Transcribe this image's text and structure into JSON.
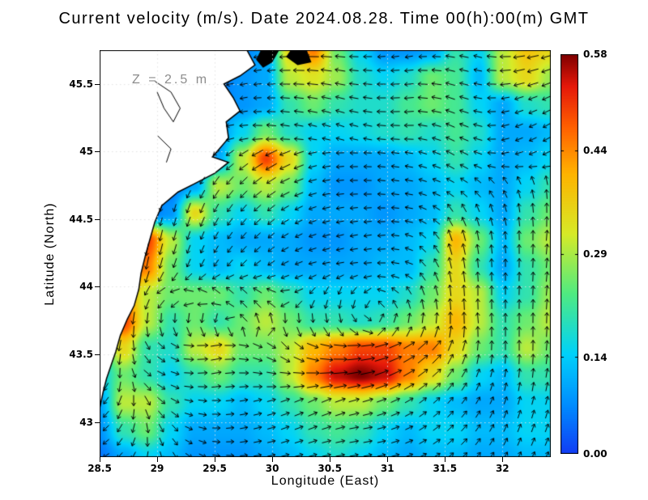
{
  "title": "Current velocity (m/s). Date 2024.08.28. Time 00(h):00(m) GMT",
  "annotation": "Z = 2.5 m",
  "axes": {
    "x": {
      "label": "Longitude (East)",
      "ticks": [
        {
          "value": 28.5,
          "label": "28.5"
        },
        {
          "value": 29.0,
          "label": "29"
        },
        {
          "value": 29.5,
          "label": "29.5"
        },
        {
          "value": 30.0,
          "label": "30"
        },
        {
          "value": 30.5,
          "label": "30.5"
        },
        {
          "value": 31.0,
          "label": "31"
        },
        {
          "value": 31.5,
          "label": "31.5"
        },
        {
          "value": 32.0,
          "label": "32"
        }
      ]
    },
    "y": {
      "label": "Latitude (North)",
      "ticks": [
        {
          "value": 45.5,
          "label": "45.5"
        },
        {
          "value": 45.0,
          "label": "45"
        },
        {
          "value": 44.5,
          "label": "44.5"
        },
        {
          "value": 44.0,
          "label": "44"
        },
        {
          "value": 43.5,
          "label": "43.5"
        },
        {
          "value": 43.0,
          "label": "43"
        }
      ]
    }
  },
  "colorbar": {
    "min": 0.0,
    "max": 0.58,
    "ticks": [
      {
        "value": 0.58,
        "label": "0.58"
      },
      {
        "value": 0.44,
        "label": "0.44"
      },
      {
        "value": 0.29,
        "label": "0.29"
      },
      {
        "value": 0.14,
        "label": "0.14"
      },
      {
        "value": 0.0,
        "label": "0.00"
      }
    ]
  },
  "colors": {
    "land_fill": "#ffffff",
    "coast_stroke": "#000000",
    "arrow": "#000000",
    "gridline": "rgba(225,225,225,0.9)",
    "annotation": "#8c8c8c"
  },
  "chart_data": {
    "type": "heatmap",
    "subtype": "vector-field",
    "title": "Current velocity (m/s). Date 2024.08.28. Time 00(h):00(m) GMT",
    "units": "m/s",
    "depth_label": "Z = 2.5 m",
    "lon_range": [
      28.5,
      32.42
    ],
    "lat_range": [
      42.74,
      45.75
    ],
    "speed_range": [
      0.0,
      0.58
    ],
    "grid_lon": [
      28.5,
      28.71,
      28.91,
      29.12,
      29.33,
      29.53,
      29.74,
      29.94,
      30.15,
      30.36,
      30.56,
      30.77,
      30.97,
      31.18,
      31.39,
      31.59,
      31.8,
      32.0,
      32.21,
      32.42
    ],
    "grid_lat": [
      45.75,
      45.55,
      45.35,
      45.15,
      44.95,
      44.75,
      44.55,
      44.34,
      44.14,
      43.94,
      43.74,
      43.54,
      43.34,
      43.14,
      42.94,
      42.74
    ],
    "speed": [
      [
        0.05,
        0.05,
        0.05,
        0.05,
        0.05,
        0.05,
        0.06,
        0.1,
        0.35,
        0.45,
        0.25,
        0.15,
        0.08,
        0.08,
        0.1,
        0.2,
        0.15,
        0.3,
        0.38,
        0.35
      ],
      [
        0.05,
        0.05,
        0.05,
        0.05,
        0.05,
        0.05,
        0.08,
        0.1,
        0.3,
        0.33,
        0.28,
        0.18,
        0.15,
        0.18,
        0.25,
        0.22,
        0.12,
        0.3,
        0.35,
        0.28
      ],
      [
        0.05,
        0.05,
        0.05,
        0.05,
        0.05,
        0.06,
        0.08,
        0.1,
        0.2,
        0.25,
        0.2,
        0.18,
        0.18,
        0.22,
        0.25,
        0.22,
        0.15,
        0.1,
        0.18,
        0.2
      ],
      [
        0.05,
        0.05,
        0.05,
        0.05,
        0.05,
        0.08,
        0.15,
        0.25,
        0.18,
        0.15,
        0.15,
        0.16,
        0.18,
        0.2,
        0.18,
        0.22,
        0.18,
        0.1,
        0.1,
        0.12
      ],
      [
        0.05,
        0.05,
        0.05,
        0.05,
        0.06,
        0.1,
        0.3,
        0.5,
        0.35,
        0.15,
        0.1,
        0.1,
        0.1,
        0.12,
        0.15,
        0.2,
        0.15,
        0.1,
        0.12,
        0.15
      ],
      [
        0.05,
        0.05,
        0.05,
        0.05,
        0.1,
        0.3,
        0.25,
        0.3,
        0.25,
        0.12,
        0.08,
        0.08,
        0.1,
        0.1,
        0.12,
        0.15,
        0.12,
        0.1,
        0.15,
        0.2
      ],
      [
        0.05,
        0.05,
        0.05,
        0.08,
        0.35,
        0.2,
        0.15,
        0.2,
        0.15,
        0.1,
        0.1,
        0.1,
        0.08,
        0.1,
        0.12,
        0.2,
        0.15,
        0.1,
        0.2,
        0.25
      ],
      [
        0.05,
        0.05,
        0.5,
        0.3,
        0.15,
        0.12,
        0.1,
        0.1,
        0.1,
        0.08,
        0.08,
        0.1,
        0.1,
        0.12,
        0.15,
        0.4,
        0.25,
        0.12,
        0.25,
        0.3
      ],
      [
        0.05,
        0.5,
        0.45,
        0.25,
        0.15,
        0.12,
        0.15,
        0.12,
        0.1,
        0.1,
        0.1,
        0.1,
        0.12,
        0.12,
        0.2,
        0.35,
        0.2,
        0.1,
        0.2,
        0.25
      ],
      [
        0.08,
        0.45,
        0.3,
        0.25,
        0.25,
        0.25,
        0.2,
        0.25,
        0.2,
        0.15,
        0.15,
        0.15,
        0.15,
        0.18,
        0.25,
        0.35,
        0.3,
        0.15,
        0.2,
        0.28
      ],
      [
        0.1,
        0.5,
        0.3,
        0.2,
        0.25,
        0.2,
        0.25,
        0.3,
        0.25,
        0.2,
        0.2,
        0.18,
        0.2,
        0.25,
        0.3,
        0.4,
        0.3,
        0.2,
        0.25,
        0.3
      ],
      [
        0.2,
        0.35,
        0.2,
        0.18,
        0.3,
        0.35,
        0.25,
        0.25,
        0.3,
        0.4,
        0.45,
        0.5,
        0.5,
        0.45,
        0.45,
        0.35,
        0.25,
        0.2,
        0.3,
        0.25
      ],
      [
        0.15,
        0.25,
        0.2,
        0.15,
        0.2,
        0.25,
        0.2,
        0.2,
        0.3,
        0.45,
        0.55,
        0.58,
        0.55,
        0.45,
        0.35,
        0.25,
        0.15,
        0.12,
        0.2,
        0.2
      ],
      [
        0.1,
        0.3,
        0.3,
        0.2,
        0.15,
        0.15,
        0.12,
        0.15,
        0.2,
        0.25,
        0.3,
        0.3,
        0.25,
        0.2,
        0.15,
        0.12,
        0.1,
        0.1,
        0.15,
        0.15
      ],
      [
        0.08,
        0.2,
        0.25,
        0.15,
        0.1,
        0.1,
        0.1,
        0.12,
        0.15,
        0.2,
        0.22,
        0.2,
        0.15,
        0.12,
        0.15,
        0.15,
        0.12,
        0.12,
        0.15,
        0.15
      ],
      [
        0.05,
        0.1,
        0.15,
        0.12,
        0.08,
        0.08,
        0.08,
        0.1,
        0.12,
        0.15,
        0.18,
        0.15,
        0.12,
        0.1,
        0.12,
        0.12,
        0.1,
        0.1,
        0.12,
        0.12
      ]
    ],
    "direction_deg": [
      [
        200,
        200,
        200,
        200,
        200,
        200,
        200,
        190,
        185,
        180,
        175,
        180,
        185,
        190,
        180,
        170,
        165,
        180,
        190,
        195
      ],
      [
        200,
        200,
        200,
        200,
        200,
        195,
        190,
        185,
        180,
        175,
        170,
        175,
        180,
        185,
        175,
        165,
        170,
        185,
        195,
        200
      ],
      [
        210,
        210,
        210,
        205,
        200,
        195,
        190,
        180,
        175,
        170,
        165,
        170,
        180,
        185,
        170,
        160,
        170,
        190,
        200,
        205
      ],
      [
        220,
        215,
        210,
        205,
        200,
        195,
        185,
        175,
        170,
        165,
        160,
        165,
        175,
        180,
        165,
        155,
        165,
        195,
        205,
        210
      ],
      [
        240,
        240,
        235,
        230,
        225,
        220,
        215,
        210,
        205,
        195,
        185,
        180,
        175,
        170,
        160,
        150,
        160,
        190,
        200,
        205
      ],
      [
        250,
        250,
        250,
        245,
        240,
        235,
        225,
        215,
        205,
        195,
        185,
        180,
        175,
        170,
        160,
        150,
        140,
        120,
        105,
        95
      ],
      [
        255,
        255,
        255,
        255,
        250,
        240,
        230,
        220,
        210,
        200,
        190,
        185,
        180,
        170,
        150,
        120,
        110,
        105,
        95,
        90
      ],
      [
        260,
        260,
        260,
        255,
        250,
        240,
        230,
        220,
        210,
        200,
        195,
        190,
        185,
        160,
        130,
        105,
        100,
        95,
        90,
        85
      ],
      [
        260,
        260,
        258,
        252,
        245,
        235,
        225,
        215,
        205,
        195,
        190,
        185,
        180,
        160,
        120,
        100,
        95,
        90,
        88,
        85
      ],
      [
        255,
        250,
        240,
        200,
        160,
        140,
        135,
        150,
        190,
        230,
        250,
        230,
        160,
        120,
        105,
        95,
        90,
        90,
        88,
        85
      ],
      [
        255,
        260,
        265,
        270,
        264,
        257,
        135,
        99,
        275,
        277,
        281,
        307,
        63,
        80,
        84,
        90,
        95,
        90,
        90,
        88
      ],
      [
        250,
        260,
        300,
        330,
        0,
        10,
        350,
        330,
        315,
        340,
        355,
        5,
        15,
        30,
        45,
        70,
        85,
        90,
        90,
        85
      ],
      [
        240,
        270,
        320,
        340,
        0,
        10,
        0,
        350,
        355,
        0,
        5,
        10,
        20,
        30,
        40,
        55,
        70,
        80,
        85,
        80
      ],
      [
        230,
        250,
        300,
        330,
        350,
        0,
        10,
        15,
        20,
        25,
        20,
        15,
        20,
        30,
        40,
        50,
        60,
        70,
        75,
        75
      ],
      [
        220,
        240,
        280,
        310,
        340,
        0,
        10,
        15,
        20,
        20,
        15,
        10,
        15,
        25,
        35,
        45,
        55,
        65,
        70,
        70
      ],
      [
        210,
        230,
        260,
        300,
        330,
        350,
        5,
        10,
        15,
        15,
        10,
        10,
        10,
        20,
        30,
        40,
        50,
        60,
        65,
        65
      ]
    ],
    "colormap_stops": [
      [
        0.0,
        [
          18,
          62,
          245
        ]
      ],
      [
        0.12,
        [
          0,
          140,
          255
        ]
      ],
      [
        0.25,
        [
          0,
          210,
          250
        ]
      ],
      [
        0.4,
        [
          80,
          235,
          130
        ]
      ],
      [
        0.55,
        [
          215,
          235,
          40
        ]
      ],
      [
        0.7,
        [
          255,
          180,
          0
        ]
      ],
      [
        0.82,
        [
          255,
          95,
          0
        ]
      ],
      [
        0.92,
        [
          230,
          25,
          10
        ]
      ],
      [
        1.0,
        [
          128,
          0,
          0
        ]
      ]
    ],
    "coastline": [
      [
        29.78,
        45.75
      ],
      [
        29.85,
        45.64
      ],
      [
        29.72,
        45.56
      ],
      [
        29.58,
        45.5
      ],
      [
        29.66,
        45.4
      ],
      [
        29.72,
        45.3
      ],
      [
        29.6,
        45.22
      ],
      [
        29.62,
        45.1
      ],
      [
        29.54,
        45.02
      ],
      [
        29.48,
        44.96
      ],
      [
        29.62,
        44.92
      ],
      [
        29.5,
        44.84
      ],
      [
        29.32,
        44.76
      ],
      [
        29.18,
        44.7
      ],
      [
        29.04,
        44.6
      ],
      [
        28.98,
        44.48
      ],
      [
        28.94,
        44.36
      ],
      [
        28.9,
        44.24
      ],
      [
        28.86,
        44.1
      ],
      [
        28.84,
        43.98
      ],
      [
        28.8,
        43.86
      ],
      [
        28.74,
        43.76
      ],
      [
        28.68,
        43.64
      ],
      [
        28.64,
        43.52
      ],
      [
        28.6,
        43.42
      ],
      [
        28.56,
        43.32
      ],
      [
        28.53,
        43.22
      ],
      [
        28.5,
        43.1
      ]
    ],
    "islets": [
      [
        [
          29.9,
          45.75
        ],
        [
          30.06,
          45.75
        ],
        [
          30.0,
          45.66
        ],
        [
          29.92,
          45.62
        ],
        [
          29.86,
          45.68
        ]
      ],
      [
        [
          30.16,
          45.75
        ],
        [
          30.3,
          45.75
        ],
        [
          30.34,
          45.66
        ],
        [
          30.22,
          45.64
        ],
        [
          30.12,
          45.7
        ]
      ]
    ],
    "lagoons": [
      [
        [
          28.98,
          45.52
        ],
        [
          29.12,
          45.44
        ],
        [
          29.2,
          45.32
        ],
        [
          29.14,
          45.22
        ],
        [
          29.06,
          45.32
        ],
        [
          29.0,
          45.44
        ]
      ],
      [
        [
          29.0,
          45.12
        ],
        [
          29.12,
          45.02
        ],
        [
          29.08,
          44.92
        ]
      ]
    ],
    "legend_position": "right-colorbar",
    "grid": "dotted"
  }
}
